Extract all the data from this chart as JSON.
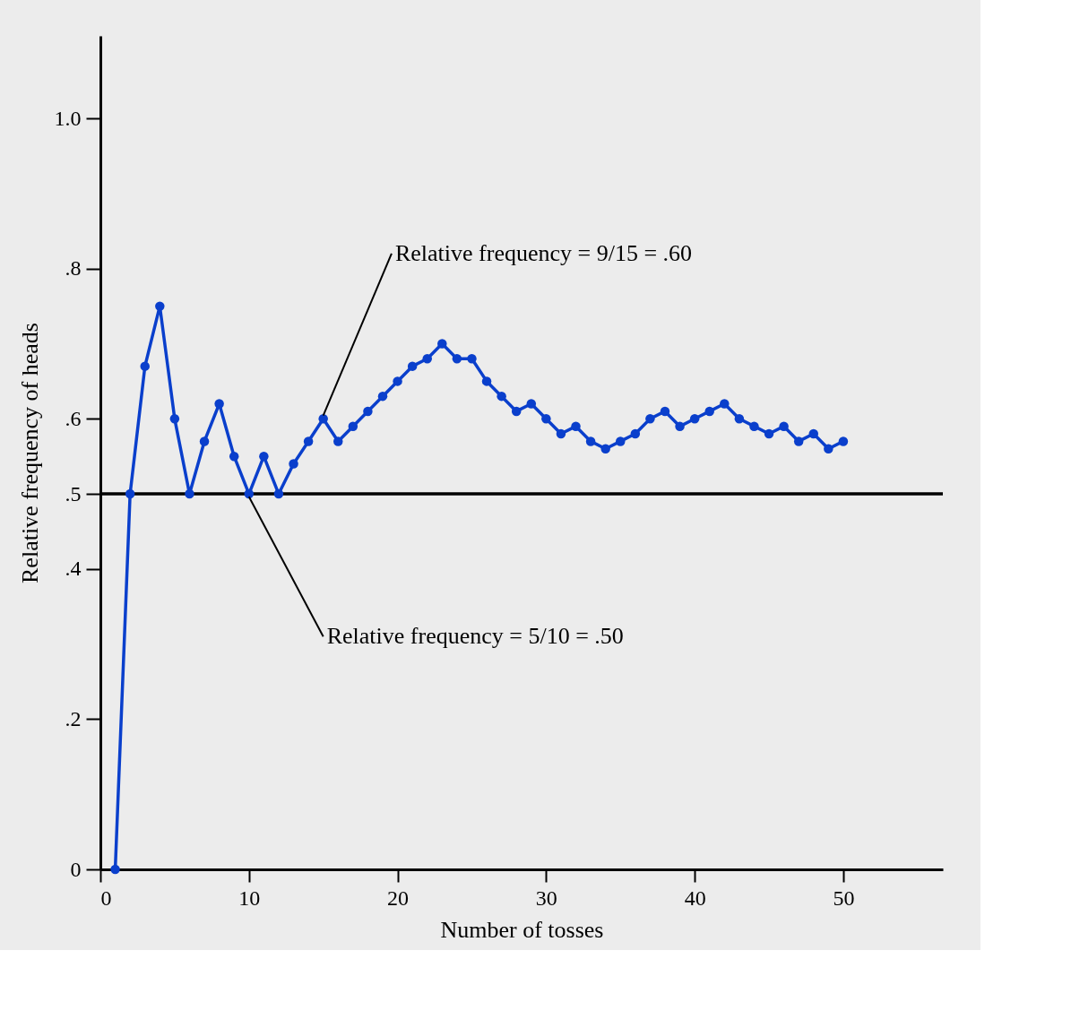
{
  "chart_data": {
    "type": "line",
    "xlabel": "Number of tosses",
    "ylabel": "Relative frequency of heads",
    "x": [
      1,
      2,
      3,
      4,
      5,
      6,
      7,
      8,
      9,
      10,
      11,
      12,
      13,
      14,
      15,
      16,
      17,
      18,
      19,
      20,
      21,
      22,
      23,
      24,
      25,
      26,
      27,
      28,
      29,
      30,
      31,
      32,
      33,
      34,
      35,
      36,
      37,
      38,
      39,
      40,
      41,
      42,
      43,
      44,
      45,
      46,
      47,
      48,
      49,
      50
    ],
    "series": [
      {
        "color": "#0a3fcc",
        "values": [
          0,
          0.5,
          0.67,
          0.75,
          0.6,
          0.5,
          0.57,
          0.62,
          0.55,
          0.5,
          0.55,
          0.5,
          0.54,
          0.57,
          0.6,
          0.57,
          0.59,
          0.61,
          0.63,
          0.65,
          0.67,
          0.68,
          0.7,
          0.68,
          0.68,
          0.65,
          0.63,
          0.61,
          0.62,
          0.6,
          0.58,
          0.59,
          0.57,
          0.56,
          0.57,
          0.58,
          0.6,
          0.61,
          0.59,
          0.6,
          0.61,
          0.62,
          0.6,
          0.59,
          0.58,
          0.59,
          0.57,
          0.58,
          0.56,
          0.57
        ]
      }
    ],
    "xlim": [
      0,
      56.7
    ],
    "ylim": [
      0,
      1.11
    ],
    "xticks": [
      0,
      10,
      20,
      30,
      40,
      50
    ],
    "yticks": [
      0,
      {
        "value": 0.2,
        "label": ".2"
      },
      {
        "value": 0.4,
        "label": ".4"
      },
      {
        "value": 0.5,
        "label": ".5"
      },
      {
        "value": 0.6,
        "label": ".6"
      },
      {
        "value": 0.8,
        "label": ".8"
      },
      {
        "value": 1.0,
        "label": "1.0"
      }
    ],
    "ref_lines": [
      {
        "axis": "y",
        "value": 0.5,
        "color": "#000000"
      }
    ],
    "annotations": [
      {
        "text": "Relative frequency = 9/15 = .60",
        "x": 15,
        "y": 0.6
      },
      {
        "text": "Relative frequency = 5/10 = .50",
        "x": 10,
        "y": 0.5
      }
    ],
    "marker": "circle",
    "line_style": "solid",
    "grid": false
  }
}
